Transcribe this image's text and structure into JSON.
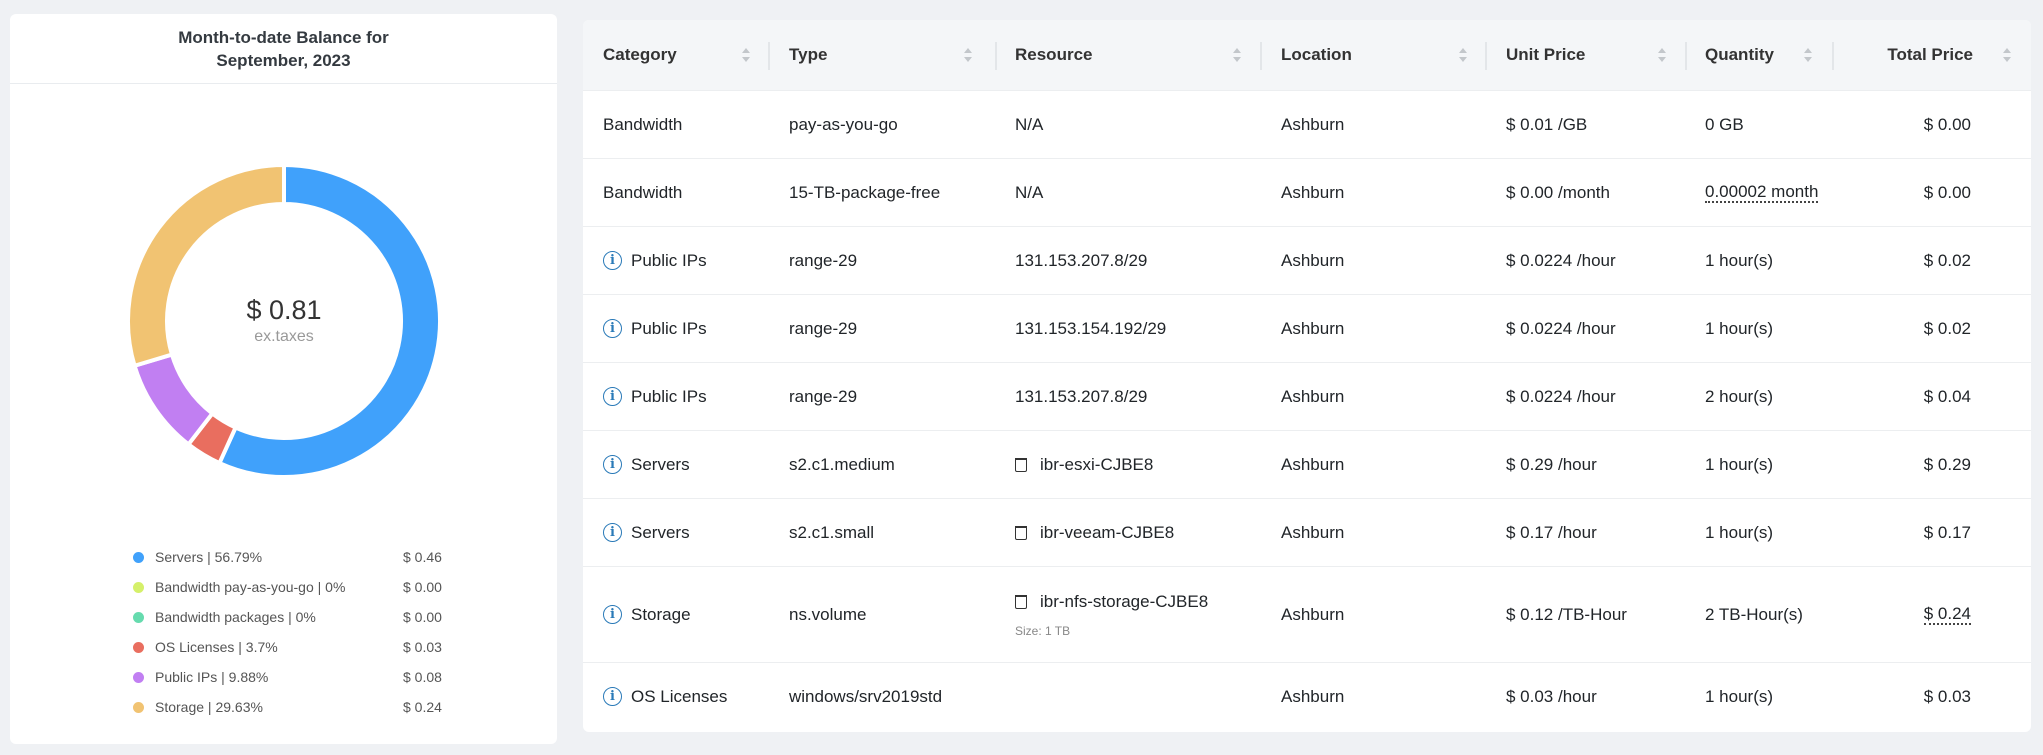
{
  "balance_card": {
    "title_line1": "Month-to-date Balance for",
    "title_line2": "September, 2023",
    "total": "$ 0.81",
    "total_note": "ex.taxes"
  },
  "chart_data": {
    "type": "pie",
    "variant": "donut",
    "start": "top, clockwise",
    "slices": [
      {
        "name": "Servers",
        "percent": 56.79,
        "amount": "$ 0.46",
        "color": "#40a1fb"
      },
      {
        "name": "Bandwidth pay-as-you-go",
        "percent": 0,
        "amount": "$ 0.00",
        "color": "#d5f06a"
      },
      {
        "name": "Bandwidth packages",
        "percent": 0,
        "amount": "$ 0.00",
        "color": "#66dbae"
      },
      {
        "name": "OS Licenses",
        "percent": 3.7,
        "amount": "$ 0.03",
        "color": "#e96e5f"
      },
      {
        "name": "Public IPs",
        "percent": 9.88,
        "amount": "$ 0.08",
        "color": "#c17ff2"
      },
      {
        "name": "Storage",
        "percent": 29.63,
        "amount": "$ 0.24",
        "color": "#f1c372"
      }
    ],
    "legend_labels": [
      "Servers |  56.79%",
      "Bandwidth pay-as-you-go |  0%",
      "Bandwidth packages |  0%",
      "OS Licenses |  3.7%",
      "Public IPs |  9.88%",
      "Storage |  29.63%"
    ],
    "legend_position": "bottom"
  },
  "table": {
    "columns": [
      "Category",
      "Type",
      "Resource",
      "Location",
      "Unit Price",
      "Quantity",
      "Total Price"
    ],
    "rows": [
      {
        "category": "Bandwidth",
        "info": false,
        "type": "pay-as-you-go",
        "resource": "N/A",
        "trash": false,
        "location": "Ashburn",
        "unit_price": "$ 0.01 /GB",
        "quantity": "0 GB",
        "total": "$ 0.00"
      },
      {
        "category": "Bandwidth",
        "info": false,
        "type": "15-TB-package-free",
        "resource": "N/A",
        "trash": false,
        "location": "Ashburn",
        "unit_price": "$ 0.00 /month",
        "quantity": "0.00002 month",
        "quantity_dotted": true,
        "total": "$ 0.00"
      },
      {
        "category": "Public IPs",
        "info": true,
        "type": "range-29",
        "resource": "131.153.207.8/29",
        "trash": false,
        "location": "Ashburn",
        "unit_price": "$ 0.0224 /hour",
        "quantity": "1 hour(s)",
        "total": "$ 0.02"
      },
      {
        "category": "Public IPs",
        "info": true,
        "type": "range-29",
        "resource": "131.153.154.192/29",
        "trash": false,
        "location": "Ashburn",
        "unit_price": "$ 0.0224 /hour",
        "quantity": "1 hour(s)",
        "total": "$ 0.02"
      },
      {
        "category": "Public IPs",
        "info": true,
        "type": "range-29",
        "resource": "131.153.207.8/29",
        "trash": false,
        "location": "Ashburn",
        "unit_price": "$ 0.0224 /hour",
        "quantity": "2 hour(s)",
        "total": "$ 0.04"
      },
      {
        "category": "Servers",
        "info": true,
        "type": "s2.c1.medium",
        "resource": "ibr-esxi-CJBE8",
        "trash": true,
        "location": "Ashburn",
        "unit_price": "$ 0.29 /hour",
        "quantity": "1 hour(s)",
        "total": "$ 0.29"
      },
      {
        "category": "Servers",
        "info": true,
        "type": "s2.c1.small",
        "resource": "ibr-veeam-CJBE8",
        "trash": true,
        "location": "Ashburn",
        "unit_price": "$ 0.17 /hour",
        "quantity": "1 hour(s)",
        "total": "$ 0.17"
      },
      {
        "category": "Storage",
        "info": true,
        "type": "ns.volume",
        "resource": "ibr-nfs-storage-CJBE8",
        "resource_sub": "Size: 1 TB",
        "trash": true,
        "location": "Ashburn",
        "unit_price": "$ 0.12 /TB-Hour",
        "quantity": "2 TB-Hour(s)",
        "total": "$ 0.24",
        "total_dotted": true
      },
      {
        "category": "OS Licenses",
        "info": true,
        "type": "windows/srv2019std",
        "resource": "",
        "trash": false,
        "location": "Ashburn",
        "unit_price": "$ 0.03 /hour",
        "quantity": "1 hour(s)",
        "total": "$ 0.03"
      }
    ]
  }
}
